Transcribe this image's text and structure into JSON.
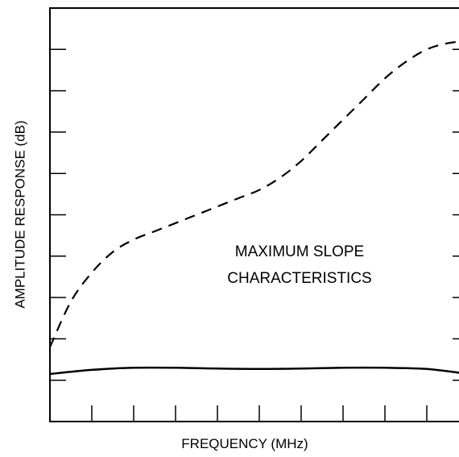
{
  "chart_data": {
    "type": "line",
    "title": "",
    "xlabel": "FREQUENCY (MHz)",
    "ylabel": "AMPLITUDE RESPONSE (dB)",
    "xlim": [
      0,
      10
    ],
    "ylim": [
      0,
      10
    ],
    "x_ticks": 10,
    "y_ticks": 10,
    "grid": false,
    "legend": "none",
    "annotations": [
      "MAXIMUM SLOPE",
      "CHARACTERISTICS"
    ],
    "series": [
      {
        "style": "dashed",
        "x": [
          0,
          0.5,
          1,
          1.5,
          2,
          2.5,
          3,
          3.5,
          4,
          4.5,
          5,
          5.5,
          6,
          6.5,
          7,
          7.5,
          8,
          8.5,
          9,
          9.5,
          10
        ],
        "values": [
          1.8,
          2.9,
          3.6,
          4.1,
          4.4,
          4.6,
          4.8,
          5.0,
          5.2,
          5.4,
          5.6,
          5.9,
          6.3,
          6.8,
          7.3,
          7.8,
          8.3,
          8.7,
          9.0,
          9.15,
          9.2
        ]
      },
      {
        "style": "solid",
        "x": [
          0,
          1,
          2,
          3,
          4,
          5,
          6,
          7,
          8,
          9,
          10
        ],
        "values": [
          1.15,
          1.25,
          1.3,
          1.3,
          1.28,
          1.27,
          1.28,
          1.3,
          1.3,
          1.27,
          1.15
        ]
      }
    ]
  }
}
